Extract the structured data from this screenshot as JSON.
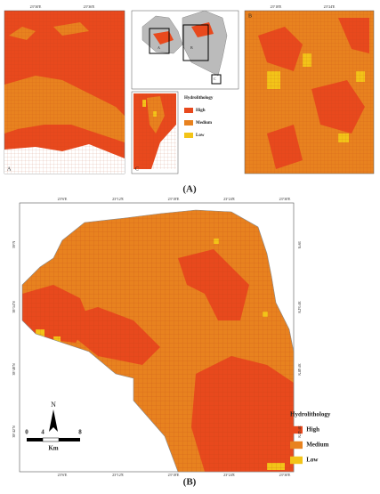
{
  "panel_a": {
    "caption": "(A)",
    "inset_labels": [
      "A",
      "B",
      "C"
    ],
    "overview_labels": [
      "A",
      "B",
      "C"
    ],
    "inset_a_lon": [
      "23°30'E",
      "23°36'E"
    ],
    "inset_b_lon": [
      "23°18'E",
      "23°24'E"
    ],
    "legend": {
      "title": "Hydrolithology",
      "items": [
        {
          "label": "High",
          "color": "#e8491d"
        },
        {
          "label": "Medium",
          "color": "#e8821f"
        },
        {
          "label": "Low",
          "color": "#f3c418"
        }
      ]
    }
  },
  "panel_b": {
    "caption": "(B)",
    "lon_labels": [
      "23°6'E",
      "23°12'E",
      "23°18'E",
      "23°24'E",
      "23°30'E"
    ],
    "lat_labels": [
      "39°N",
      "38°54'N",
      "38°48'N",
      "38°42'N"
    ],
    "north": "N",
    "scale": {
      "ticks": [
        "0",
        "4",
        "8"
      ],
      "unit": "Km"
    },
    "legend": {
      "title": "Hydrolithology",
      "items": [
        {
          "label": "High",
          "color": "#e8491d"
        },
        {
          "label": "Medium",
          "color": "#e8821f"
        },
        {
          "label": "Low",
          "color": "#f3c418"
        }
      ]
    }
  }
}
